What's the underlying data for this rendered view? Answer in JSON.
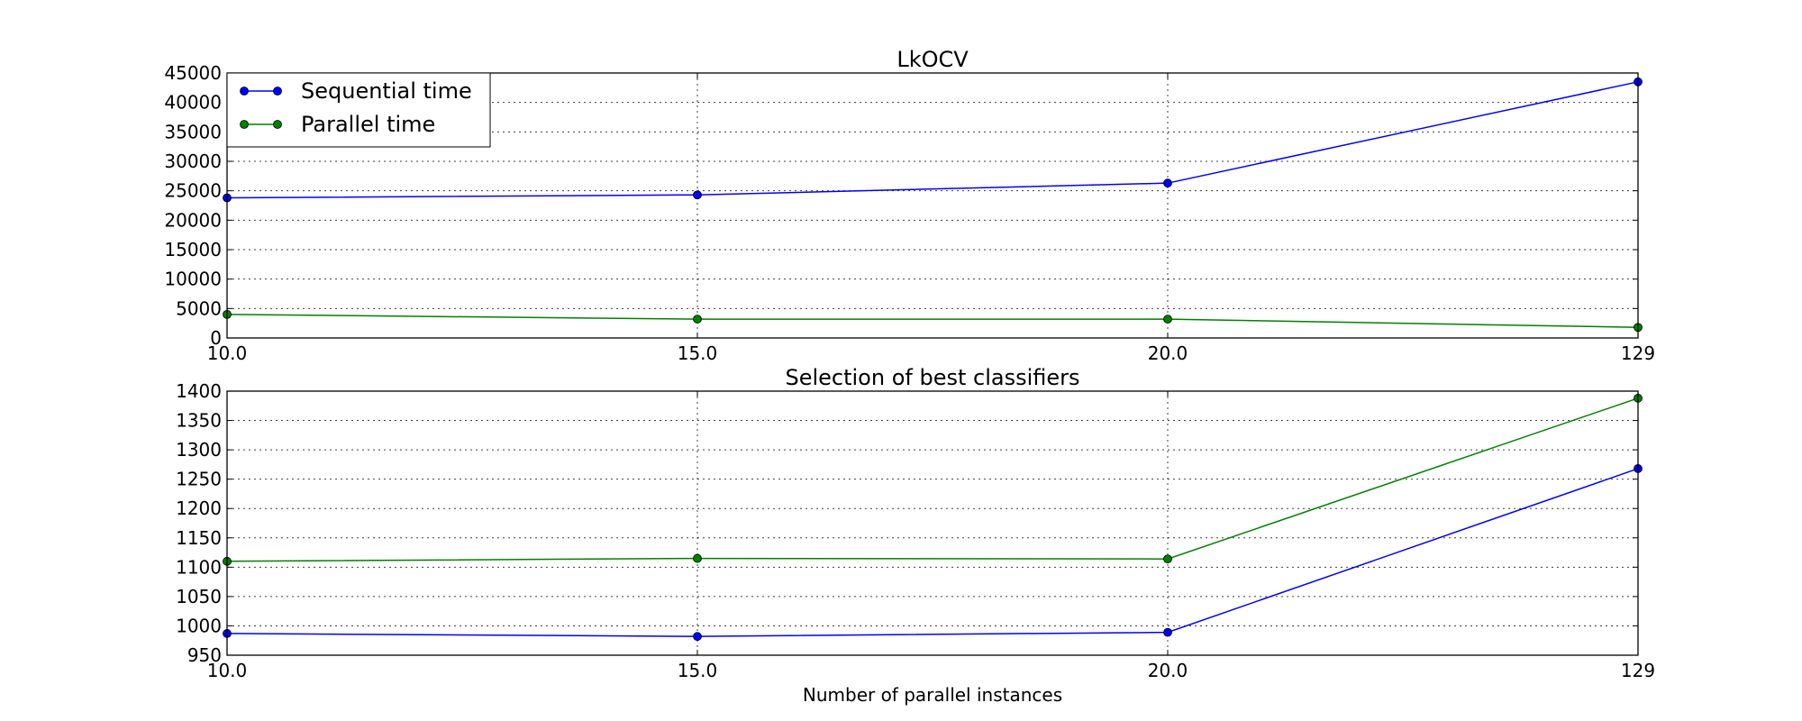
{
  "chart_data": [
    {
      "type": "line",
      "title": "LkOCV",
      "categories": [
        "10.0",
        "15.0",
        "20.0",
        "129"
      ],
      "series": [
        {
          "name": "Sequential time",
          "color": "#0000ff",
          "values": [
            23800,
            24300,
            26300,
            43500
          ]
        },
        {
          "name": "Parallel time",
          "color": "#008000",
          "values": [
            4000,
            3200,
            3200,
            1800
          ]
        }
      ],
      "xlabel": "",
      "ylabel": "",
      "ylim": [
        0,
        45000
      ],
      "yticks": [
        "0",
        "5000",
        "10000",
        "15000",
        "20000",
        "25000",
        "30000",
        "35000",
        "40000",
        "45000"
      ],
      "grid": true,
      "legend": "upper-left"
    },
    {
      "type": "line",
      "title": "Selection of best classifiers",
      "categories": [
        "10.0",
        "15.0",
        "20.0",
        "129"
      ],
      "series": [
        {
          "name": "Sequential time",
          "color": "#0000ff",
          "values": [
            987,
            982,
            989,
            1268
          ]
        },
        {
          "name": "Parallel time",
          "color": "#008000",
          "values": [
            1110,
            1115,
            1114,
            1388
          ]
        }
      ],
      "xlabel": "Number of parallel instances",
      "ylabel": "",
      "ylim": [
        950,
        1400
      ],
      "yticks": [
        "950",
        "1000",
        "1050",
        "1100",
        "1150",
        "1200",
        "1250",
        "1300",
        "1350",
        "1400"
      ],
      "grid": true,
      "legend": "none"
    }
  ]
}
